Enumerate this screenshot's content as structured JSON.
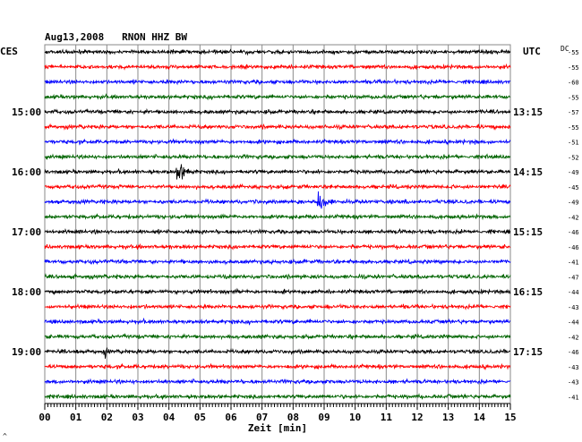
{
  "chart_data": {
    "type": "line",
    "title": "Aug13,2008   RNON HHZ BW",
    "left_axis_label": "CES",
    "right_axis_label": "UTC",
    "dc_label": "DC",
    "xlabel": "Zeit [min]",
    "corner_mark": "^",
    "xlim": [
      0,
      15
    ],
    "x_ticks": [
      "00",
      "01",
      "02",
      "03",
      "04",
      "05",
      "06",
      "07",
      "08",
      "09",
      "10",
      "11",
      "12",
      "13",
      "14",
      "15"
    ],
    "rows": 24,
    "row_colors": [
      "#000000",
      "#ff0000",
      "#0000ff",
      "#006400"
    ],
    "left_hour_labels": [
      {
        "row": 4,
        "label": "15:00"
      },
      {
        "row": 8,
        "label": "16:00"
      },
      {
        "row": 12,
        "label": "17:00"
      },
      {
        "row": 16,
        "label": "18:00"
      },
      {
        "row": 20,
        "label": "19:00"
      }
    ],
    "right_time_labels": [
      {
        "row": 4,
        "label": "13:15"
      },
      {
        "row": 8,
        "label": "14:15"
      },
      {
        "row": 12,
        "label": "15:15"
      },
      {
        "row": 16,
        "label": "16:15"
      },
      {
        "row": 20,
        "label": "17:15"
      }
    ],
    "dc_offsets": [
      -55,
      -55,
      -60,
      -55,
      -57,
      -55,
      -51,
      -52,
      -49,
      -45,
      -49,
      -42,
      -46,
      -46,
      -41,
      -47,
      -44,
      -43,
      -44,
      -42,
      -46,
      -43,
      -43,
      -41
    ],
    "events": [
      {
        "row": 8,
        "time_min": 4.3,
        "amplitude": "large"
      },
      {
        "row": 10,
        "time_min": 8.8,
        "amplitude": "large"
      },
      {
        "row": 20,
        "time_min": 1.95,
        "amplitude": "small"
      }
    ]
  }
}
